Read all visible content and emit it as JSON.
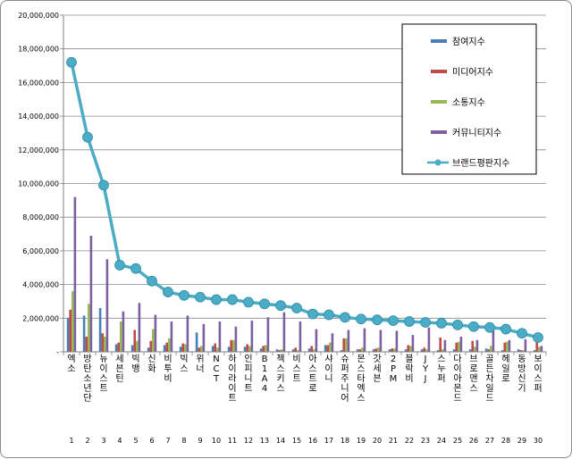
{
  "chart_data": {
    "type": "bar",
    "title": "",
    "xlabel": "",
    "ylabel": "",
    "ylim": [
      0,
      20000000
    ],
    "yticks": [
      0,
      2000000,
      4000000,
      6000000,
      8000000,
      10000000,
      12000000,
      14000000,
      16000000,
      18000000,
      20000000
    ],
    "ytick_labels": [
      "-",
      "2,000,000",
      "4,000,000",
      "6,000,000",
      "8,000,000",
      "10,000,000",
      "12,000,000",
      "14,000,000",
      "16,000,000",
      "18,000,000",
      "20,000,000"
    ],
    "grid": true,
    "legend_position": "top-right",
    "categories": [
      "엑소",
      "방탄소년단",
      "뉴이스트",
      "세븐틴",
      "빅뱅",
      "신화",
      "비투비",
      "빅스",
      "위너",
      "NCT",
      "하이라이트",
      "인피니트",
      "B1A4",
      "젝스키스",
      "비스트",
      "아스트로",
      "샤이니",
      "슈퍼주니어",
      "몬스타엑스",
      "갓세븐",
      "2PM",
      "블락비",
      "JYJ",
      "스누퍼",
      "다이아몬드",
      "브로맨스",
      "골든차일드",
      "헤일로",
      "동방신기",
      "보이스퍼"
    ],
    "ranks": [
      "1",
      "2",
      "3",
      "4",
      "5",
      "6",
      "7",
      "8",
      "9",
      "10",
      "11",
      "12",
      "13",
      "14",
      "15",
      "16",
      "17",
      "18",
      "19",
      "20",
      "21",
      "22",
      "23",
      "24",
      "25",
      "26",
      "27",
      "28",
      "29",
      "30"
    ],
    "series": [
      {
        "name": "참여지수",
        "kind": "bar",
        "color": "#4a7ebb",
        "values": [
          2000000,
          2150000,
          2600000,
          450000,
          400000,
          250000,
          400000,
          300000,
          1150000,
          350000,
          300000,
          300000,
          200000,
          150000,
          150000,
          200000,
          400000,
          100000,
          150000,
          150000,
          150000,
          150000,
          150000,
          100000,
          150000,
          150000,
          200000,
          100000,
          150000,
          100000
        ]
      },
      {
        "name": "미디어지수",
        "kind": "bar",
        "color": "#be4b48",
        "values": [
          2500000,
          900000,
          1100000,
          550000,
          1300000,
          650000,
          550000,
          500000,
          250000,
          500000,
          700000,
          450000,
          350000,
          100000,
          250000,
          350000,
          400000,
          800000,
          150000,
          200000,
          200000,
          400000,
          250000,
          850000,
          550000,
          650000,
          150000,
          550000,
          100000,
          600000
        ]
      },
      {
        "name": "소통지수",
        "kind": "bar",
        "color": "#98b954",
        "values": [
          3600000,
          2850000,
          900000,
          1800000,
          650000,
          1350000,
          800000,
          450000,
          350000,
          250000,
          700000,
          350000,
          400000,
          150000,
          100000,
          150000,
          550000,
          800000,
          250000,
          250000,
          200000,
          350000,
          150000,
          150000,
          600000,
          300000,
          350000,
          600000,
          100000,
          300000
        ]
      },
      {
        "name": "커뮤니티지수",
        "kind": "bar",
        "color": "#7d60a0",
        "values": [
          9200000,
          6900000,
          5500000,
          2400000,
          2900000,
          2200000,
          1800000,
          2150000,
          1650000,
          1800000,
          1500000,
          1850000,
          2050000,
          2350000,
          1800000,
          1350000,
          1100000,
          1300000,
          1400000,
          1300000,
          1250000,
          1000000,
          1450000,
          700000,
          900000,
          700000,
          1450000,
          700000,
          750000,
          350000
        ]
      },
      {
        "name": "브랜드평판지수",
        "kind": "line",
        "color": "#4bacc6",
        "values": [
          17200000,
          12750000,
          9900000,
          5150000,
          4950000,
          4200000,
          3550000,
          3350000,
          3250000,
          3100000,
          3100000,
          2950000,
          2850000,
          2750000,
          2600000,
          2250000,
          2200000,
          2050000,
          1950000,
          1900000,
          1850000,
          1800000,
          1750000,
          1700000,
          1600000,
          1500000,
          1450000,
          1350000,
          1100000,
          850000
        ]
      }
    ]
  }
}
